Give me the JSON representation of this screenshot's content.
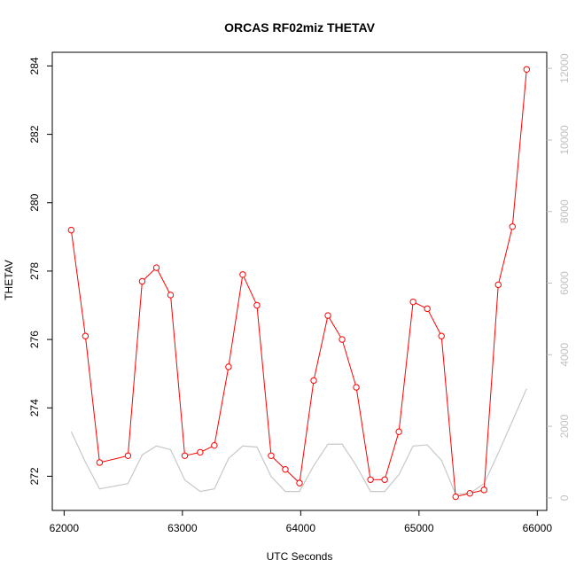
{
  "chart_data": {
    "type": "line",
    "title": "ORCAS RF02miz THETAV",
    "xlabel": "UTC Seconds",
    "ylabel": "THETAV",
    "xlim": [
      61900,
      66080
    ],
    "ylim": [
      271.0,
      284.4
    ],
    "y2lim": [
      -350,
      12450
    ],
    "x_ticks": [
      62000,
      63000,
      64000,
      65000,
      66000
    ],
    "y_ticks": [
      272,
      274,
      276,
      278,
      280,
      282,
      284
    ],
    "y2_ticks": [
      0,
      2000,
      4000,
      6000,
      8000,
      10000,
      12000
    ],
    "colors": {
      "primary": "#ff0000",
      "secondary": "#c8c8c8",
      "axis": "#000000",
      "axis2": "#c0c0c0"
    },
    "grid": false,
    "series": [
      {
        "axis": "left",
        "style": "line+points",
        "color": "#ff0000",
        "x": [
          62060,
          62180,
          62300,
          62540,
          62660,
          62780,
          62900,
          63020,
          63150,
          63270,
          63390,
          63510,
          63630,
          63750,
          63870,
          63990,
          64110,
          64230,
          64350,
          64470,
          64590,
          64710,
          64830,
          64950,
          65070,
          65190,
          65310,
          65430,
          65550,
          65670,
          65790,
          65910
        ],
        "values": [
          279.2,
          276.1,
          272.4,
          272.6,
          277.7,
          278.1,
          277.3,
          272.6,
          272.7,
          272.9,
          275.2,
          277.9,
          277.0,
          272.6,
          272.2,
          271.8,
          274.8,
          276.7,
          276.0,
          274.6,
          271.9,
          271.9,
          273.3,
          277.1,
          276.9,
          276.1,
          271.4,
          271.5,
          271.6,
          277.6,
          279.3,
          283.9
        ]
      },
      {
        "axis": "right",
        "style": "line",
        "color": "#c8c8c8",
        "x": [
          62060,
          62180,
          62300,
          62540,
          62660,
          62780,
          62900,
          63020,
          63150,
          63270,
          63390,
          63510,
          63630,
          63750,
          63870,
          63990,
          64110,
          64230,
          64350,
          64470,
          64590,
          64710,
          64830,
          64950,
          65070,
          65190,
          65310,
          65430,
          65550,
          65670,
          65790,
          65910
        ],
        "values": [
          1850,
          1000,
          250,
          400,
          1200,
          1450,
          1350,
          500,
          180,
          250,
          1100,
          1450,
          1420,
          600,
          180,
          180,
          900,
          1500,
          1500,
          900,
          180,
          180,
          650,
          1450,
          1480,
          1050,
          100,
          130,
          400,
          1250,
          2150,
          3050
        ]
      }
    ]
  }
}
